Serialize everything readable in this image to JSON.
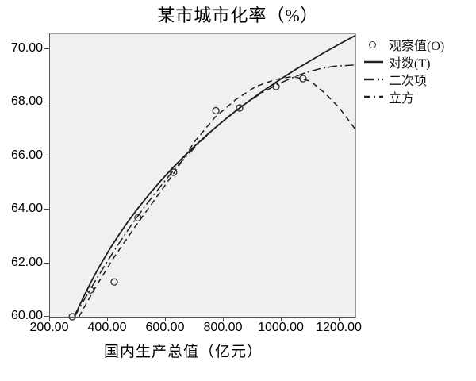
{
  "title": "某市城市化率（%）",
  "x_axis": {
    "label": "国内生产总值（亿元）",
    "tick_labels": [
      "200.00",
      "400.00",
      "600.00",
      "800.00",
      "1000.00",
      "1200.00"
    ],
    "tick_values": [
      200,
      400,
      600,
      800,
      1000,
      1200
    ]
  },
  "y_axis": {
    "label": "",
    "tick_labels": [
      "70.00",
      "68.00",
      "66.00",
      "64.00",
      "62.00",
      "60.00"
    ],
    "tick_values": [
      70,
      68,
      66,
      64,
      62,
      60
    ]
  },
  "legend": [
    {
      "label": "观察值(O)",
      "marker": "circle"
    },
    {
      "label": "对数(T)",
      "marker": "solid-line"
    },
    {
      "label": "二次项",
      "marker": "dash-dot-line"
    },
    {
      "label": "立方",
      "marker": "dash-line"
    }
  ],
  "colors": {
    "curve": "#1c1c1c",
    "point_stroke": "#3a3a3a",
    "plot_bg": "#f0f0ee",
    "border": "#9a9a9a",
    "text": "#000000"
  },
  "chart_data": {
    "type": "scatter",
    "subtype": "curve-estimation (SPSS style): observed points with logarithmic, quadratic and cubic fits",
    "title": "某市城市化率（%）",
    "xlabel": "国内生产总值（亿元）",
    "ylabel": "",
    "xlim": [
      200,
      1255
    ],
    "ylim": [
      60,
      70.56
    ],
    "x_ticks": [
      200,
      400,
      600,
      800,
      1000,
      1200
    ],
    "y_ticks": [
      60,
      62,
      64,
      66,
      68,
      70
    ],
    "grid": false,
    "legend_position": "top-right-outside",
    "series": [
      {
        "name": "观察值(O)",
        "type": "scatter",
        "marker": "open-circle",
        "points": [
          [
            277,
            60.0
          ],
          [
            340,
            61.0
          ],
          [
            422,
            61.3
          ],
          [
            504,
            63.7
          ],
          [
            627,
            65.4
          ],
          [
            773,
            67.7
          ],
          [
            855,
            67.8
          ],
          [
            981,
            68.6
          ],
          [
            1074,
            68.9
          ]
        ]
      },
      {
        "name": "对数(T)",
        "type": "line",
        "dash": "solid",
        "points": [
          [
            285,
            60.03
          ],
          [
            300,
            60.37
          ],
          [
            320,
            60.83
          ],
          [
            340,
            61.26
          ],
          [
            360,
            61.67
          ],
          [
            385,
            62.14
          ],
          [
            410,
            62.59
          ],
          [
            440,
            63.09
          ],
          [
            470,
            63.56
          ],
          [
            500,
            64.0
          ],
          [
            540,
            64.54
          ],
          [
            580,
            65.05
          ],
          [
            620,
            65.52
          ],
          [
            660,
            65.96
          ],
          [
            700,
            66.38
          ],
          [
            750,
            66.87
          ],
          [
            800,
            67.33
          ],
          [
            850,
            67.76
          ],
          [
            900,
            68.16
          ],
          [
            950,
            68.54
          ],
          [
            1000,
            68.9
          ],
          [
            1050,
            69.25
          ],
          [
            1100,
            69.57
          ],
          [
            1150,
            69.89
          ],
          [
            1200,
            70.19
          ],
          [
            1255,
            70.51
          ]
        ]
      },
      {
        "name": "二次项",
        "type": "line",
        "dash": "dash-dot",
        "points": [
          [
            285,
            60.0
          ],
          [
            320,
            60.67
          ],
          [
            360,
            61.4
          ],
          [
            400,
            62.1
          ],
          [
            440,
            62.77
          ],
          [
            480,
            63.41
          ],
          [
            530,
            64.15
          ],
          [
            580,
            64.85
          ],
          [
            630,
            65.51
          ],
          [
            680,
            66.1
          ],
          [
            730,
            66.65
          ],
          [
            780,
            67.15
          ],
          [
            830,
            67.6
          ],
          [
            880,
            68.0
          ],
          [
            930,
            68.35
          ],
          [
            980,
            68.65
          ],
          [
            1030,
            68.9
          ],
          [
            1080,
            69.11
          ],
          [
            1130,
            69.26
          ],
          [
            1180,
            69.36
          ],
          [
            1255,
            69.41
          ]
        ]
      },
      {
        "name": "立方",
        "type": "line",
        "dash": "dash",
        "points": [
          [
            300,
            60.0
          ],
          [
            360,
            61.15
          ],
          [
            420,
            62.2
          ],
          [
            490,
            63.3
          ],
          [
            560,
            64.35
          ],
          [
            630,
            65.4
          ],
          [
            700,
            66.55
          ],
          [
            770,
            67.45
          ],
          [
            840,
            68.1
          ],
          [
            910,
            68.6
          ],
          [
            980,
            68.87
          ],
          [
            1040,
            68.98
          ],
          [
            1100,
            68.8
          ],
          [
            1150,
            68.35
          ],
          [
            1200,
            67.8
          ],
          [
            1255,
            67.0
          ]
        ]
      }
    ]
  }
}
